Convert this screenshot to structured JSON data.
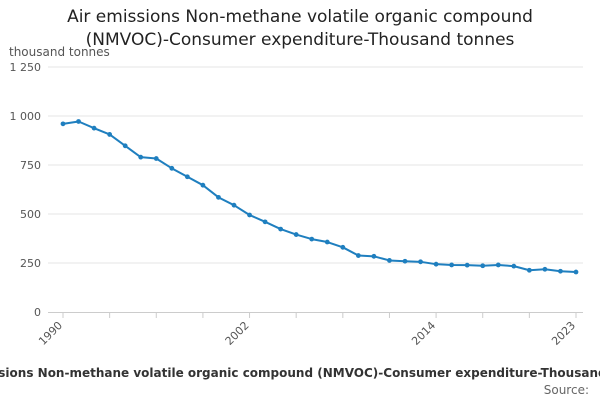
{
  "chart_data": {
    "type": "line",
    "title_lines": [
      "Air emissions Non-methane volatile organic compound",
      "(NMVOC)-Consumer expenditure-Thousand tonnes"
    ],
    "ylabel": "thousand tonnes",
    "xlabel": "",
    "ylim": [
      0,
      1250
    ],
    "yticks": [
      0,
      250,
      500,
      750,
      1000,
      1250
    ],
    "ytick_labels": [
      "0",
      "250",
      "500",
      "750",
      "1 000",
      "1 250"
    ],
    "xlim": [
      1990,
      2023
    ],
    "xticks": [
      1990,
      1993,
      1996,
      1999,
      2002,
      2005,
      2008,
      2011,
      2014,
      2017,
      2020,
      2023
    ],
    "xtick_labels": [
      {
        "year": 1990,
        "label": "1990"
      },
      {
        "year": 2002,
        "label": "2002"
      },
      {
        "year": 2014,
        "label": "2014"
      },
      {
        "year": 2023,
        "label": "2023"
      }
    ],
    "grid": true,
    "series": [
      {
        "name": "Air emissions Non-methane volatile organic compound (NMVOC)-Consumer expenditure-Thousand tonnes",
        "color": "#1f7fbf",
        "x": [
          1990,
          1991,
          1992,
          1993,
          1994,
          1995,
          1996,
          1997,
          1998,
          1999,
          2000,
          2001,
          2002,
          2003,
          2004,
          2005,
          2006,
          2007,
          2008,
          2009,
          2010,
          2011,
          2012,
          2013,
          2014,
          2015,
          2016,
          2017,
          2018,
          2019,
          2020,
          2021,
          2022,
          2023
        ],
        "values": [
          960,
          972,
          938,
          906,
          848,
          790,
          783,
          733,
          690,
          647,
          585,
          545,
          495,
          460,
          423,
          395,
          372,
          357,
          330,
          288,
          284,
          263,
          259,
          256,
          244,
          240,
          239,
          236,
          240,
          234,
          213,
          218,
          208,
          204
        ]
      }
    ],
    "legend_title": "Air emissions Non-methane volatile organic compound (NMVOC)-Consumer expenditure-Thousand tonnes",
    "source": "Source:"
  }
}
